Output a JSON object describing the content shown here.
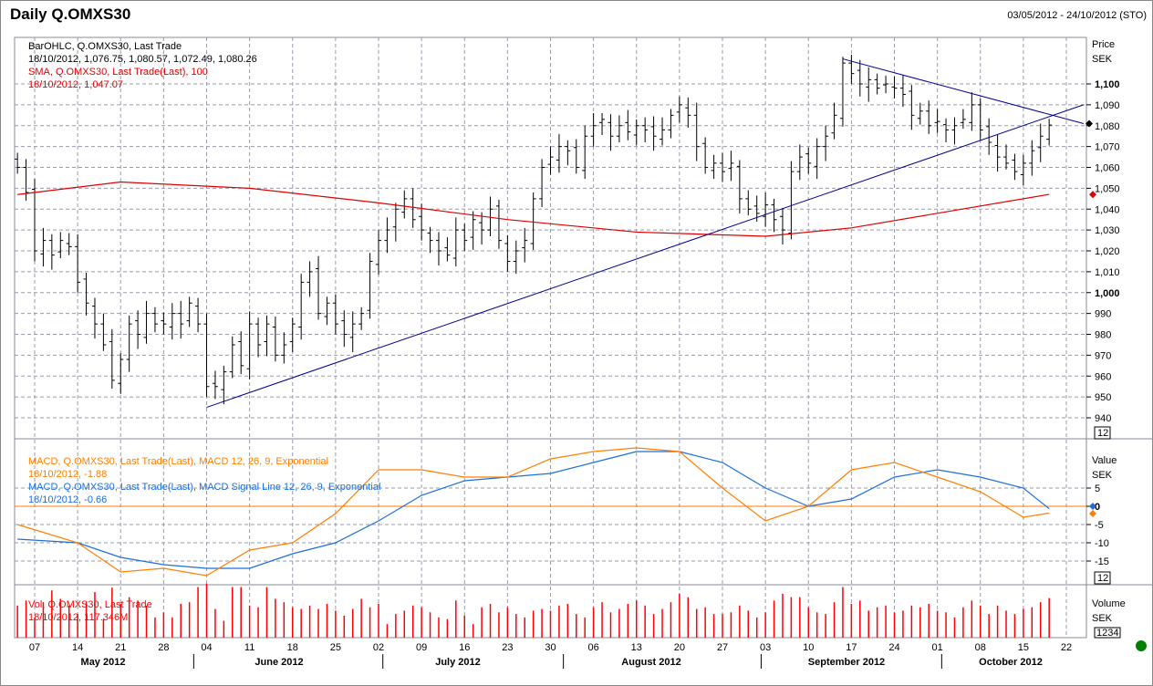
{
  "header": {
    "title": "Daily Q.OMXS30",
    "date_range": "03/05/2012 - 24/10/2012 (STO)"
  },
  "legend": {
    "price": {
      "line1": "BarOHLC, Q.OMXS30, Last Trade",
      "line2": "18/10/2012, 1,076.75, 1,080.57, 1,072.49, 1,080.26"
    },
    "sma": {
      "line1": "SMA, Q.OMXS30, Last Trade(Last),  100",
      "line2": "18/10/2012, 1,047.07"
    },
    "macd": {
      "line1": "MACD, Q.OMXS30, Last Trade(Last), MACD 12, 26, 9, Exponential",
      "line2": "18/10/2012, -1.88"
    },
    "signal": {
      "line1": "MACD, Q.OMXS30, Last Trade(Last), MACD Signal Line 12, 26, 9, Exponential",
      "line2": "18/10/2012, -0.66"
    },
    "volume": {
      "line1": "Vol, Q.OMXS30, Last Trade",
      "line2": "18/10/2012, 117.346M"
    }
  },
  "axes": {
    "price": {
      "label1": "Price",
      "label2": "SEK",
      "ticks": [
        940,
        950,
        960,
        970,
        980,
        990,
        1000,
        1010,
        1020,
        1030,
        1040,
        1050,
        1060,
        1070,
        1080,
        1090,
        1100
      ],
      "bold": [
        1000,
        1100
      ],
      "badge": "12"
    },
    "macd": {
      "label1": "Value",
      "label2": "SEK",
      "ticks": [
        5,
        0,
        -5,
        -10,
        -15
      ],
      "badge": "12"
    },
    "volume": {
      "label1": "Volume",
      "label2": "SEK",
      "badge": "1234"
    },
    "x_days": [
      "07",
      "14",
      "21",
      "28",
      "04",
      "11",
      "18",
      "25",
      "02",
      "09",
      "16",
      "23",
      "30",
      "06",
      "13",
      "20",
      "27",
      "03",
      "10",
      "17",
      "24",
      "01",
      "08",
      "15",
      "22"
    ],
    "months": [
      "May 2012",
      "June 2012",
      "July 2012",
      "August 2012",
      "September 2012",
      "October 2012"
    ]
  },
  "colors": {
    "bars": "#000000",
    "sma": "#e00000",
    "macd": "#ff7f00",
    "signal": "#1e6fd9",
    "volume": "#ff0000",
    "trend": "#00008b",
    "status": "#008000"
  },
  "chart_data": {
    "type": "ohlc",
    "start_date": "2012-05-03",
    "closes": [
      1060,
      1048,
      1020,
      1025,
      1018,
      1025,
      1022,
      1005,
      995,
      985,
      975,
      958,
      968,
      985,
      980,
      990,
      985,
      985,
      990,
      985,
      995,
      985,
      955,
      955,
      962,
      975,
      965,
      985,
      975,
      985,
      970,
      975,
      985,
      1005,
      1010,
      990,
      995,
      985,
      980,
      985,
      990,
      1015,
      1025,
      1030,
      1040,
      1045,
      1035,
      1030,
      1025,
      1020,
      1018,
      1030,
      1025,
      1035,
      1030,
      1040,
      1025,
      1015,
      1020,
      1025,
      1045,
      1060,
      1065,
      1070,
      1068,
      1060,
      1075,
      1080,
      1083,
      1075,
      1080,
      1077,
      1080,
      1078,
      1075,
      1078,
      1085,
      1090,
      1085,
      1070,
      1060,
      1062,
      1058,
      1062,
      1045,
      1040,
      1038,
      1042,
      1035,
      1030,
      1058,
      1065,
      1062,
      1070,
      1075,
      1085,
      1110,
      1105,
      1100,
      1102,
      1098,
      1100,
      1098,
      1095,
      1085,
      1087,
      1080,
      1082,
      1078,
      1080,
      1083,
      1090,
      1078,
      1072,
      1065,
      1062,
      1058,
      1062,
      1068,
      1075,
      1080.26
    ],
    "volumes_M": [
      95,
      110,
      60,
      105,
      140,
      115,
      95,
      70,
      105,
      135,
      55,
      148,
      100,
      120,
      110,
      95,
      60,
      75,
      60,
      100,
      105,
      150,
      160,
      85,
      50,
      150,
      150,
      95,
      90,
      150,
      115,
      105,
      90,
      85,
      95,
      85,
      100,
      80,
      65,
      85,
      115,
      90,
      100,
      40,
      70,
      80,
      95,
      90,
      75,
      60,
      55,
      110,
      65,
      40,
      90,
      100,
      75,
      90,
      70,
      60,
      80,
      85,
      80,
      95,
      100,
      70,
      60,
      90,
      105,
      75,
      85,
      100,
      110,
      95,
      70,
      85,
      105,
      130,
      120,
      85,
      90,
      70,
      70,
      75,
      95,
      80,
      60,
      75,
      110,
      130,
      120,
      120,
      90,
      75,
      70,
      105,
      150,
      100,
      110,
      80,
      90,
      95,
      75,
      80,
      95,
      90,
      100,
      80,
      75,
      60,
      90,
      110,
      95,
      70,
      95,
      80,
      70,
      85,
      90,
      105,
      117.346
    ],
    "sma": {
      "dates": [
        "2012-05-03",
        "2012-05-21",
        "2012-06-11",
        "2012-07-02",
        "2012-07-23",
        "2012-08-13",
        "2012-09-03",
        "2012-09-17",
        "2012-10-01",
        "2012-10-18"
      ],
      "values": [
        1047,
        1053,
        1050,
        1043,
        1035,
        1029,
        1027,
        1031,
        1038,
        1047.07
      ]
    },
    "macd": {
      "dates": [
        "2012-05-03",
        "2012-05-14",
        "2012-05-21",
        "2012-05-28",
        "2012-06-04",
        "2012-06-11",
        "2012-06-18",
        "2012-06-25",
        "2012-07-02",
        "2012-07-09",
        "2012-07-16",
        "2012-07-23",
        "2012-07-30",
        "2012-08-06",
        "2012-08-13",
        "2012-08-20",
        "2012-08-27",
        "2012-09-03",
        "2012-09-10",
        "2012-09-17",
        "2012-09-24",
        "2012-10-01",
        "2012-10-08",
        "2012-10-15",
        "2012-10-18"
      ],
      "macd": [
        -5,
        -10,
        -18,
        -17,
        -19,
        -12,
        -10,
        -2,
        10,
        10,
        8,
        8,
        13,
        15,
        16,
        15,
        5,
        -4,
        0,
        10,
        12,
        8,
        4,
        -3,
        -1.88
      ],
      "signal": [
        -9,
        -10,
        -14,
        -16,
        -17,
        -17,
        -13,
        -10,
        -4,
        3,
        7,
        8,
        9,
        12,
        15,
        15,
        12,
        5,
        0,
        2,
        8,
        10,
        8,
        5,
        -0.66
      ]
    },
    "trendlines": [
      {
        "from": [
          "2012-06-04",
          945
        ],
        "to": [
          "2012-10-24",
          1090
        ]
      },
      {
        "from": [
          "2012-09-14",
          1112
        ],
        "to": [
          "2012-10-24",
          1081
        ]
      }
    ],
    "price_range": [
      935,
      1115
    ],
    "macd_range": [
      -20,
      17
    ]
  }
}
